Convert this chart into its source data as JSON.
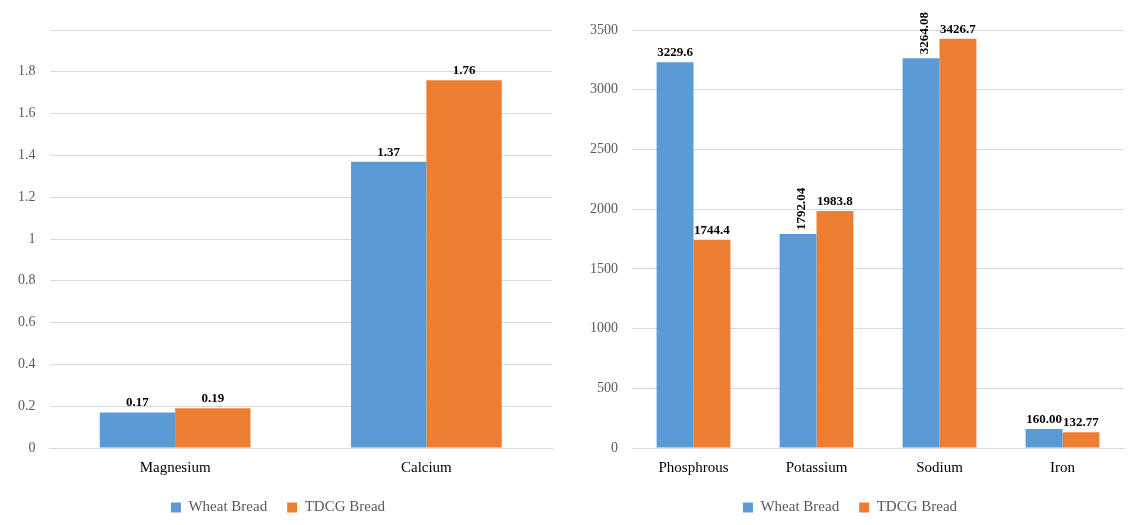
{
  "chart_data": [
    {
      "type": "bar",
      "categories": [
        "Magnesium",
        "Calcium"
      ],
      "series": [
        {
          "name": "Wheat Bread",
          "color": "#5b9bd5",
          "values": [
            0.17,
            1.37
          ],
          "value_labels": [
            "0.17",
            "1.37"
          ]
        },
        {
          "name": "TDCG Bread",
          "color": "#ed7d31",
          "values": [
            0.19,
            1.76
          ],
          "value_labels": [
            "0.19",
            "1.76"
          ]
        }
      ],
      "ylim": [
        0,
        2
      ],
      "yticks": [
        0,
        0.2,
        0.4,
        0.6,
        0.8,
        1,
        1.2,
        1.4,
        1.6,
        1.8,
        {
          "value": 2,
          "label": null
        }
      ],
      "grid": "y",
      "legend": "bottom"
    },
    {
      "type": "bar",
      "categories": [
        "Phosphrous",
        "Potassium",
        "Sodium",
        "Iron"
      ],
      "series": [
        {
          "name": "Wheat Bread",
          "color": "#5b9bd5",
          "values": [
            3229.6,
            1792.04,
            3264.08,
            160
          ],
          "value_labels": [
            "3229.6",
            "1792.04",
            "3264.08",
            "160.00"
          ]
        },
        {
          "name": "TDCG Bread",
          "color": "#ed7d31",
          "values": [
            1744.4,
            1983.8,
            3426.7,
            132.77
          ],
          "value_labels": [
            "1744.4",
            "1983.8",
            "3426.7",
            "132.77"
          ]
        }
      ],
      "ylim": [
        0,
        3500
      ],
      "yticks": [
        0,
        500,
        1000,
        1500,
        2000,
        2500,
        3000,
        3500
      ],
      "grid": "y",
      "legend": "bottom"
    }
  ]
}
